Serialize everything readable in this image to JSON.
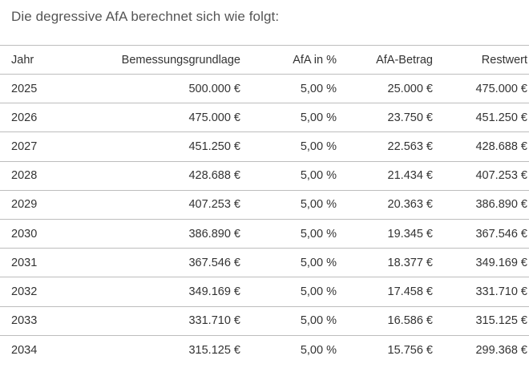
{
  "heading": "Die degressive AfA berechnet sich wie folgt:",
  "table": {
    "headers": {
      "year": "Jahr",
      "base": "Bemessungsgrundlage",
      "pct": "AfA in %",
      "amount": "AfA-Betrag",
      "rest": "Restwert"
    },
    "rows": [
      {
        "year": "2025",
        "base": "500.000 €",
        "pct": "5,00 %",
        "amount": "25.000 €",
        "rest": "475.000 €"
      },
      {
        "year": "2026",
        "base": "475.000 €",
        "pct": "5,00 %",
        "amount": "23.750 €",
        "rest": "451.250 €"
      },
      {
        "year": "2027",
        "base": "451.250 €",
        "pct": "5,00 %",
        "amount": "22.563 €",
        "rest": "428.688 €"
      },
      {
        "year": "2028",
        "base": "428.688 €",
        "pct": "5,00 %",
        "amount": "21.434 €",
        "rest": "407.253 €"
      },
      {
        "year": "2029",
        "base": "407.253 €",
        "pct": "5,00 %",
        "amount": "20.363 €",
        "rest": "386.890 €"
      },
      {
        "year": "2030",
        "base": "386.890 €",
        "pct": "5,00 %",
        "amount": "19.345 €",
        "rest": "367.546 €"
      },
      {
        "year": "2031",
        "base": "367.546 €",
        "pct": "5,00 %",
        "amount": "18.377 €",
        "rest": "349.169 €"
      },
      {
        "year": "2032",
        "base": "349.169 €",
        "pct": "5,00 %",
        "amount": "17.458 €",
        "rest": "331.710 €"
      },
      {
        "year": "2033",
        "base": "331.710 €",
        "pct": "5,00 %",
        "amount": "16.586 €",
        "rest": "315.125 €"
      },
      {
        "year": "2034",
        "base": "315.125 €",
        "pct": "5,00 %",
        "amount": "15.756 €",
        "rest": "299.368 €"
      }
    ]
  }
}
